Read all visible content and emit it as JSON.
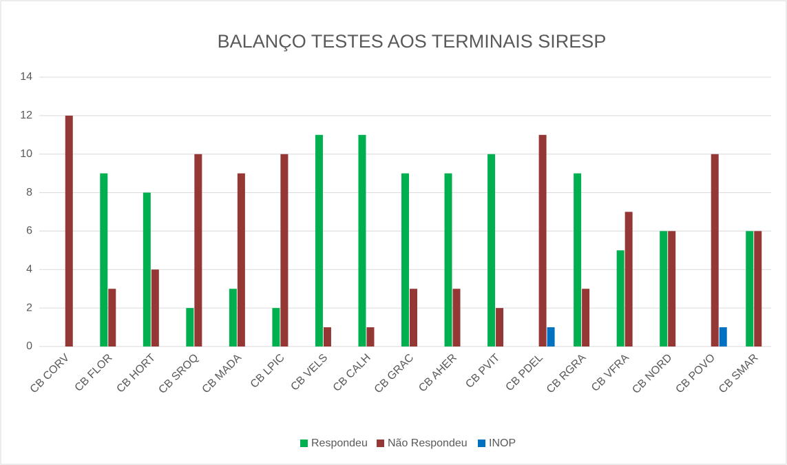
{
  "chart_data": {
    "type": "bar",
    "title": "BALANÇO TESTES AOS TERMINAIS SIRESP",
    "categories": [
      "CB CORV",
      "CB FLOR",
      "CB HORT",
      "CB SROQ",
      "CB MADA",
      "CB LPIC",
      "CB VELS",
      "CB CALH",
      "CB GRAC",
      "CB AHER",
      "CB PVIT",
      "CB PDEL",
      "CB RGRA",
      "CB VFRA",
      "CB NORD",
      "CB POVO",
      "CB SMAR"
    ],
    "series": [
      {
        "name": "Respondeu",
        "color": "#00b050",
        "values": [
          0,
          9,
          8,
          2,
          3,
          2,
          11,
          11,
          9,
          9,
          10,
          0,
          9,
          5,
          6,
          0,
          6
        ]
      },
      {
        "name": "Não Respondeu",
        "color": "#953735",
        "values": [
          12,
          3,
          4,
          10,
          9,
          10,
          1,
          1,
          3,
          3,
          2,
          11,
          3,
          7,
          6,
          10,
          6
        ]
      },
      {
        "name": "INOP",
        "color": "#0070c0",
        "values": [
          0,
          0,
          0,
          0,
          0,
          0,
          0,
          0,
          0,
          0,
          0,
          1,
          0,
          0,
          0,
          1,
          0
        ]
      }
    ],
    "ylim": [
      0,
      14
    ],
    "yticks": [
      0,
      2,
      4,
      6,
      8,
      10,
      12,
      14
    ],
    "grid": true,
    "legend": "bottom"
  }
}
